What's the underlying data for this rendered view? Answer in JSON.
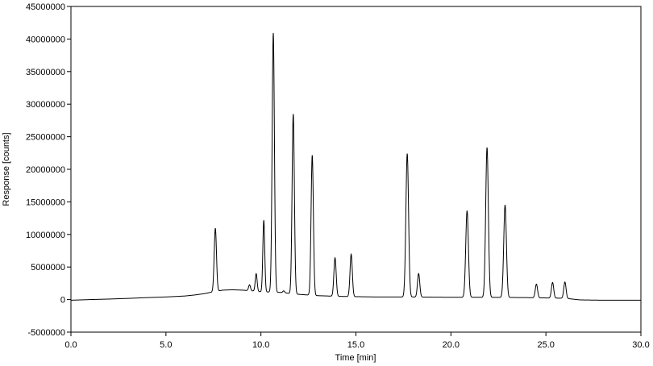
{
  "chart_data": {
    "type": "line",
    "title": "",
    "xlabel": "Time [min]",
    "ylabel": "Response [counts]",
    "xlim": [
      0.0,
      30.0
    ],
    "ylim": [
      -5000000,
      45000000
    ],
    "xticks": [
      0.0,
      5.0,
      10.0,
      15.0,
      20.0,
      25.0,
      30.0
    ],
    "xtick_labels": [
      "0.0",
      "5.0",
      "10.0",
      "15.0",
      "20.0",
      "25.0",
      "30.0"
    ],
    "yticks": [
      -5000000,
      0,
      5000000,
      10000000,
      15000000,
      20000000,
      25000000,
      30000000,
      35000000,
      40000000,
      45000000
    ],
    "ytick_labels": [
      "-5000000",
      "0",
      "5000000",
      "10000000",
      "15000000",
      "20000000",
      "25000000",
      "30000000",
      "35000000",
      "40000000",
      "45000000"
    ],
    "grid": false,
    "line_color": "#000000",
    "baseline": [
      {
        "x": 0.0,
        "y": -100000
      },
      {
        "x": 1.0,
        "y": 0
      },
      {
        "x": 2.0,
        "y": 80000
      },
      {
        "x": 3.0,
        "y": 180000
      },
      {
        "x": 4.0,
        "y": 300000
      },
      {
        "x": 5.0,
        "y": 400000
      },
      {
        "x": 6.0,
        "y": 550000
      },
      {
        "x": 6.5,
        "y": 700000
      },
      {
        "x": 7.0,
        "y": 900000
      },
      {
        "x": 7.5,
        "y": 1200000
      },
      {
        "x": 8.0,
        "y": 1450000
      },
      {
        "x": 8.5,
        "y": 1500000
      },
      {
        "x": 9.0,
        "y": 1450000
      },
      {
        "x": 9.5,
        "y": 1350000
      },
      {
        "x": 10.0,
        "y": 1200000
      },
      {
        "x": 11.0,
        "y": 1100000
      },
      {
        "x": 12.0,
        "y": 800000
      },
      {
        "x": 13.0,
        "y": 600000
      },
      {
        "x": 14.0,
        "y": 500000
      },
      {
        "x": 16.0,
        "y": 400000
      },
      {
        "x": 18.0,
        "y": 400000
      },
      {
        "x": 20.0,
        "y": 350000
      },
      {
        "x": 22.0,
        "y": 350000
      },
      {
        "x": 24.0,
        "y": 300000
      },
      {
        "x": 26.0,
        "y": 200000
      },
      {
        "x": 26.8,
        "y": -50000
      },
      {
        "x": 28.0,
        "y": -100000
      },
      {
        "x": 30.0,
        "y": -100000
      }
    ],
    "peaks": [
      {
        "time": 7.6,
        "height": 9700000,
        "width": 0.06
      },
      {
        "time": 9.4,
        "height": 900000,
        "width": 0.05
      },
      {
        "time": 9.75,
        "height": 2700000,
        "width": 0.05
      },
      {
        "time": 10.15,
        "height": 11000000,
        "width": 0.05
      },
      {
        "time": 10.65,
        "height": 39800000,
        "width": 0.06
      },
      {
        "time": 11.2,
        "height": 300000,
        "width": 0.05
      },
      {
        "time": 11.7,
        "height": 27600000,
        "width": 0.06
      },
      {
        "time": 12.7,
        "height": 21500000,
        "width": 0.06
      },
      {
        "time": 13.9,
        "height": 5900000,
        "width": 0.06
      },
      {
        "time": 14.75,
        "height": 6500000,
        "width": 0.06
      },
      {
        "time": 17.7,
        "height": 22000000,
        "width": 0.07
      },
      {
        "time": 18.3,
        "height": 3600000,
        "width": 0.06
      },
      {
        "time": 20.85,
        "height": 13300000,
        "width": 0.07
      },
      {
        "time": 21.9,
        "height": 23000000,
        "width": 0.07
      },
      {
        "time": 22.85,
        "height": 14200000,
        "width": 0.07
      },
      {
        "time": 24.5,
        "height": 2100000,
        "width": 0.06
      },
      {
        "time": 25.35,
        "height": 2400000,
        "width": 0.06
      },
      {
        "time": 26.0,
        "height": 2500000,
        "width": 0.06
      }
    ]
  }
}
